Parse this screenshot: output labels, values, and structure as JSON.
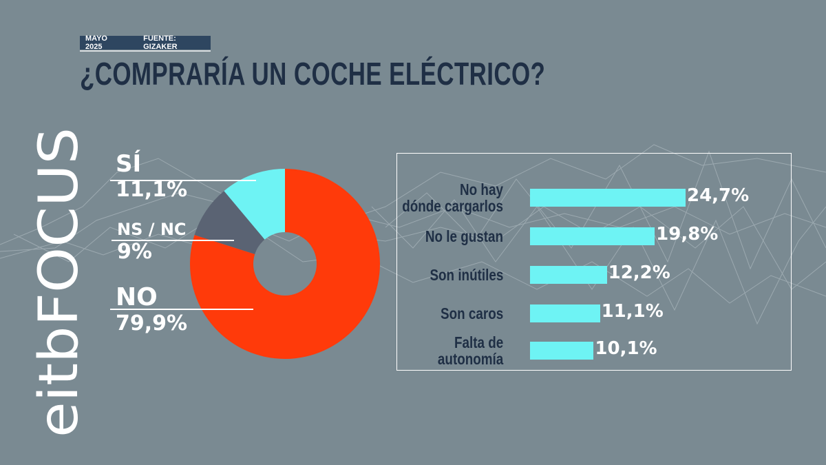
{
  "header": {
    "date": "MAYO 2025",
    "source": "FUENTE: GIZAKER",
    "title": "¿COMPRARÍA UN COCHE ELÉCTRICO?"
  },
  "logo": {
    "text": "eitbFOCUS"
  },
  "colors": {
    "background": "#7a8a92",
    "no": "#ff3a0a",
    "si": "#6ef3f4",
    "nsnc": "#5a6373",
    "bar": "#6ef3f4",
    "title": "#1f2f45"
  },
  "chart_data": [
    {
      "type": "pie",
      "title": "",
      "slices": [
        {
          "label": "SÍ",
          "value": 11.1,
          "display": "11,1%",
          "color": "#6ef3f4"
        },
        {
          "label": "NS / NC",
          "value": 9,
          "display": "9%",
          "color": "#5a6373"
        },
        {
          "label": "NO",
          "value": 79.9,
          "display": "79,9%",
          "color": "#ff3a0a"
        }
      ],
      "donut": true,
      "start_angle_deg": 0,
      "direction": "counterclockwise"
    },
    {
      "type": "bar",
      "orientation": "horizontal",
      "title": "",
      "categories": [
        "No hay dónde cargarlos",
        "No le gustan",
        "Son inútiles",
        "Son caros",
        "Falta de autonomía"
      ],
      "category_lines": [
        [
          "No hay",
          "dónde cargarlos"
        ],
        [
          "No le gustan"
        ],
        [
          "Son inútiles"
        ],
        [
          "Son caros"
        ],
        [
          "Falta de",
          "autonomía"
        ]
      ],
      "values": [
        24.7,
        19.8,
        12.2,
        11.1,
        10.1
      ],
      "display": [
        "24,7%",
        "19,8%",
        "12,2%",
        "11,1%",
        "10,1%"
      ],
      "xlim": [
        0,
        24.7
      ]
    }
  ]
}
